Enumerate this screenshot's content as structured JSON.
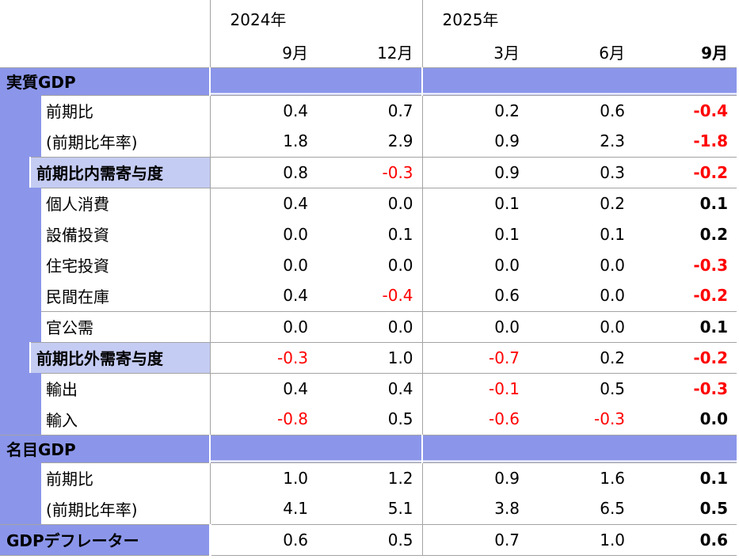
{
  "colors": {
    "band": "#8B96EA",
    "subband": "#C5CCF3",
    "negative": "#FF0000",
    "grid": "#A3A3A3",
    "text": "#000000"
  },
  "chart_data": {
    "type": "table",
    "header": {
      "year_groups": [
        {
          "label": "2024年",
          "span": 2
        },
        {
          "label": "2025年",
          "span": 3
        }
      ],
      "months": [
        {
          "label": "9月",
          "bold": false
        },
        {
          "label": "12月",
          "bold": false
        },
        {
          "label": "3月",
          "bold": false
        },
        {
          "label": "6月",
          "bold": false
        },
        {
          "label": "9月",
          "bold": true
        }
      ]
    },
    "rows": [
      {
        "kind": "band",
        "label": "実質GDP",
        "topline": false
      },
      {
        "kind": "data",
        "label": "前期比",
        "topline": true,
        "values": [
          "0.4",
          "0.7",
          "0.2",
          "0.6",
          "-0.4"
        ]
      },
      {
        "kind": "data",
        "label": "(前期比年率)",
        "topline": false,
        "values": [
          "1.8",
          "2.9",
          "0.9",
          "2.3",
          "-1.8"
        ]
      },
      {
        "kind": "subband",
        "label": "前期比内需寄与度",
        "topline": true,
        "values": [
          "0.8",
          "-0.3",
          "0.9",
          "0.3",
          "-0.2"
        ]
      },
      {
        "kind": "data",
        "label": "個人消費",
        "topline": true,
        "values": [
          "0.4",
          "0.0",
          "0.1",
          "0.2",
          "0.1"
        ]
      },
      {
        "kind": "data",
        "label": "設備投資",
        "topline": false,
        "values": [
          "0.0",
          "0.1",
          "0.1",
          "0.1",
          "0.2"
        ]
      },
      {
        "kind": "data",
        "label": "住宅投資",
        "topline": false,
        "values": [
          "0.0",
          "0.0",
          "0.0",
          "0.0",
          "-0.3"
        ]
      },
      {
        "kind": "data",
        "label": "民間在庫",
        "topline": false,
        "values": [
          "0.4",
          "-0.4",
          "0.6",
          "0.0",
          "-0.2"
        ]
      },
      {
        "kind": "data",
        "label": "官公需",
        "topline": true,
        "values": [
          "0.0",
          "0.0",
          "0.0",
          "0.0",
          "0.1"
        ]
      },
      {
        "kind": "subband",
        "label": "前期比外需寄与度",
        "topline": true,
        "values": [
          "-0.3",
          "1.0",
          "-0.7",
          "0.2",
          "-0.2"
        ]
      },
      {
        "kind": "data",
        "label": "輸出",
        "topline": true,
        "values": [
          "0.4",
          "0.4",
          "-0.1",
          "0.5",
          "-0.3"
        ]
      },
      {
        "kind": "data",
        "label": "輸入",
        "topline": false,
        "values": [
          "-0.8",
          "0.5",
          "-0.6",
          "-0.3",
          "0.0"
        ]
      },
      {
        "kind": "band",
        "label": "名目GDP",
        "topline": true
      },
      {
        "kind": "data",
        "label": "前期比",
        "topline": true,
        "values": [
          "1.0",
          "1.2",
          "0.9",
          "1.6",
          "0.1"
        ]
      },
      {
        "kind": "data",
        "label": "(前期比年率)",
        "topline": false,
        "values": [
          "4.1",
          "5.1",
          "3.8",
          "6.5",
          "0.5"
        ]
      },
      {
        "kind": "deflator",
        "label": "GDPデフレーター",
        "topline": true,
        "bottomline": true,
        "values": [
          "0.6",
          "0.5",
          "0.7",
          "1.0",
          "0.6"
        ]
      }
    ]
  }
}
